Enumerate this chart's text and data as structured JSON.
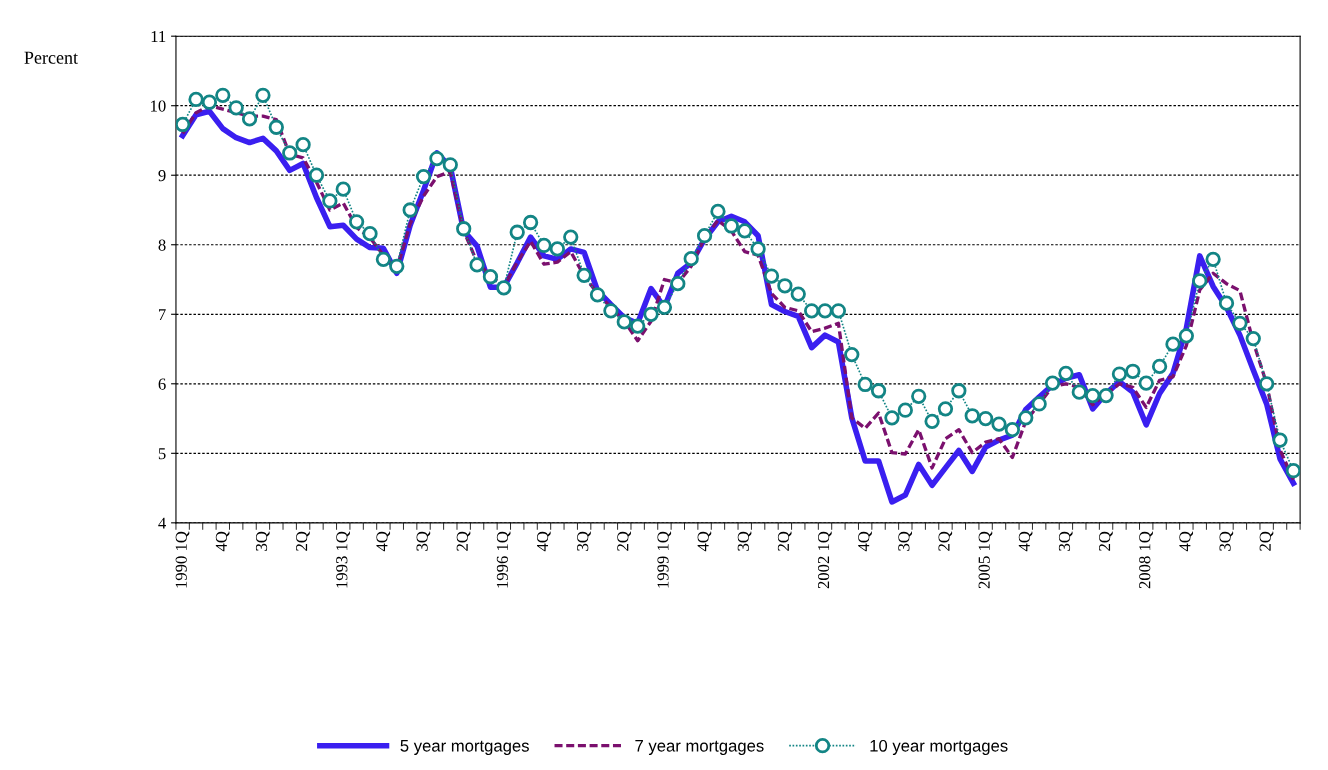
{
  "chart_data": {
    "type": "line",
    "ylabel": "Percent",
    "categories": [
      "1990 1Q",
      null,
      null,
      "4Q",
      null,
      null,
      "3Q",
      null,
      null,
      "2Q",
      null,
      null,
      "1993 1Q",
      null,
      null,
      "4Q",
      null,
      null,
      "3Q",
      null,
      null,
      "2Q",
      null,
      null,
      "1996 1Q",
      null,
      null,
      "4Q",
      null,
      null,
      "3Q",
      null,
      null,
      "2Q",
      null,
      null,
      "1999 1Q",
      null,
      null,
      "4Q",
      null,
      null,
      "3Q",
      null,
      null,
      "2Q",
      null,
      null,
      "2002 1Q",
      null,
      null,
      "4Q",
      null,
      null,
      "3Q",
      null,
      null,
      "2Q",
      null,
      null,
      "2005 1Q",
      null,
      null,
      "4Q",
      null,
      null,
      "3Q",
      null,
      null,
      "2Q",
      null,
      null,
      "2008 1Q",
      null,
      null,
      "4Q",
      null,
      null,
      "3Q",
      null,
      null,
      "2Q",
      null,
      null
    ],
    "series": [
      {
        "name": "5 year mortgages",
        "color": "#3a1ff0",
        "line_style": "solid",
        "marker": "none",
        "values": [
          9.57,
          9.87,
          9.92,
          9.67,
          9.54,
          9.47,
          9.53,
          9.35,
          9.07,
          9.17,
          8.68,
          8.26,
          8.28,
          8.08,
          7.96,
          7.95,
          7.59,
          8.28,
          8.78,
          9.32,
          9.12,
          8.2,
          7.98,
          7.39,
          7.39,
          7.74,
          8.11,
          7.84,
          7.79,
          7.94,
          7.89,
          7.34,
          7.14,
          6.95,
          6.87,
          7.37,
          7.1,
          7.59,
          7.74,
          8.08,
          8.33,
          8.41,
          8.33,
          8.13,
          7.14,
          7.04,
          6.97,
          6.52,
          6.7,
          6.6,
          5.51,
          4.89,
          4.89,
          4.3,
          4.4,
          4.84,
          4.54,
          4.79,
          5.04,
          4.74,
          5.09,
          5.19,
          5.26,
          5.63,
          5.81,
          5.98,
          6.08,
          6.13,
          5.64,
          5.86,
          6.03,
          5.88,
          5.41,
          5.86,
          6.15,
          6.8,
          7.84,
          7.4,
          7.1,
          6.7,
          6.2,
          5.71,
          4.92,
          4.57
        ]
      },
      {
        "name": "7 year mortgages",
        "color": "#7b106e",
        "line_style": "dashed",
        "marker": "none",
        "values": [
          9.6,
          9.9,
          10.0,
          9.95,
          9.9,
          9.85,
          9.85,
          9.8,
          9.3,
          9.25,
          8.9,
          8.5,
          8.6,
          8.25,
          8.1,
          7.85,
          7.65,
          8.3,
          8.7,
          8.98,
          9.05,
          8.2,
          7.75,
          7.55,
          7.4,
          7.75,
          8.05,
          7.72,
          7.75,
          7.9,
          7.55,
          7.3,
          7.1,
          6.9,
          6.62,
          6.9,
          7.5,
          7.45,
          7.69,
          8.1,
          8.35,
          8.2,
          7.9,
          7.85,
          7.3,
          7.1,
          7.05,
          6.75,
          6.8,
          6.87,
          5.51,
          5.36,
          5.58,
          5.01,
          4.99,
          5.34,
          4.79,
          5.21,
          5.34,
          5.01,
          5.16,
          5.21,
          4.94,
          5.46,
          5.71,
          5.96,
          6.0,
          5.95,
          5.7,
          5.85,
          6.0,
          5.95,
          5.66,
          6.05,
          6.1,
          6.55,
          7.35,
          7.59,
          7.44,
          7.34,
          6.6,
          6.0,
          5.05,
          4.62
        ]
      },
      {
        "name": "10 year mortgages",
        "color": "#138585",
        "line_style": "dotted",
        "marker": "circle",
        "values": [
          9.73,
          10.09,
          10.05,
          10.15,
          9.97,
          9.81,
          10.15,
          9.69,
          9.32,
          9.44,
          9.0,
          8.63,
          8.8,
          8.33,
          8.16,
          7.79,
          7.69,
          8.5,
          8.98,
          9.24,
          9.15,
          8.23,
          7.71,
          7.54,
          7.38,
          8.18,
          8.32,
          7.99,
          7.94,
          8.11,
          7.56,
          7.28,
          7.05,
          6.89,
          6.83,
          7.0,
          7.1,
          7.44,
          7.8,
          8.13,
          8.48,
          8.27,
          8.2,
          7.94,
          7.55,
          7.41,
          7.29,
          7.05,
          7.05,
          7.05,
          6.42,
          5.99,
          5.9,
          5.51,
          5.62,
          5.82,
          5.46,
          5.64,
          5.9,
          5.54,
          5.5,
          5.42,
          5.34,
          5.51,
          5.71,
          6.01,
          6.15,
          5.88,
          5.83,
          5.83,
          6.14,
          6.18,
          6.01,
          6.25,
          6.57,
          6.69,
          7.48,
          7.79,
          7.16,
          6.87,
          6.65,
          6.0,
          5.19,
          4.75
        ]
      }
    ],
    "ylim": [
      4,
      11
    ],
    "yticks": [
      4,
      5,
      6,
      7,
      8,
      9,
      10,
      11
    ],
    "grid": "y",
    "legend": "bottom"
  }
}
